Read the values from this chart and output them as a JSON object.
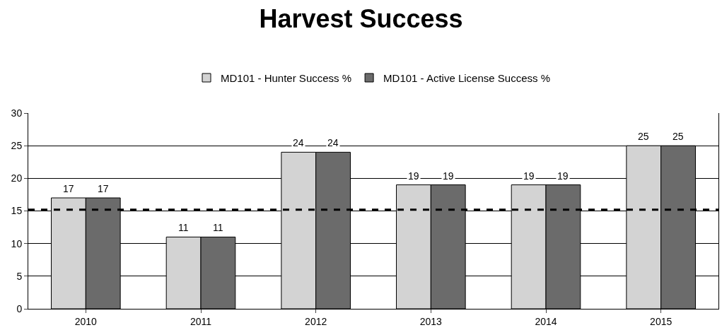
{
  "chart_data": {
    "type": "bar",
    "title": "Harvest Success",
    "categories": [
      "2010",
      "2011",
      "2012",
      "2013",
      "2014",
      "2015"
    ],
    "series": [
      {
        "name": "MD101 - Hunter Success %",
        "color": "#d3d3d3",
        "values": [
          17,
          11,
          24,
          19,
          19,
          25
        ]
      },
      {
        "name": "MD101 - Active License Success %",
        "color": "#6b6b6b",
        "values": [
          17,
          11,
          24,
          19,
          19,
          25
        ]
      }
    ],
    "ylim": [
      0,
      30
    ],
    "yticks": [
      0,
      5,
      10,
      15,
      20,
      25,
      30
    ],
    "grid": "y",
    "legend": "top",
    "data_labels": true,
    "ref_lines": [
      {
        "axis": "y",
        "value": 15.2,
        "color": "#000000",
        "line_style": "dashed"
      }
    ]
  }
}
